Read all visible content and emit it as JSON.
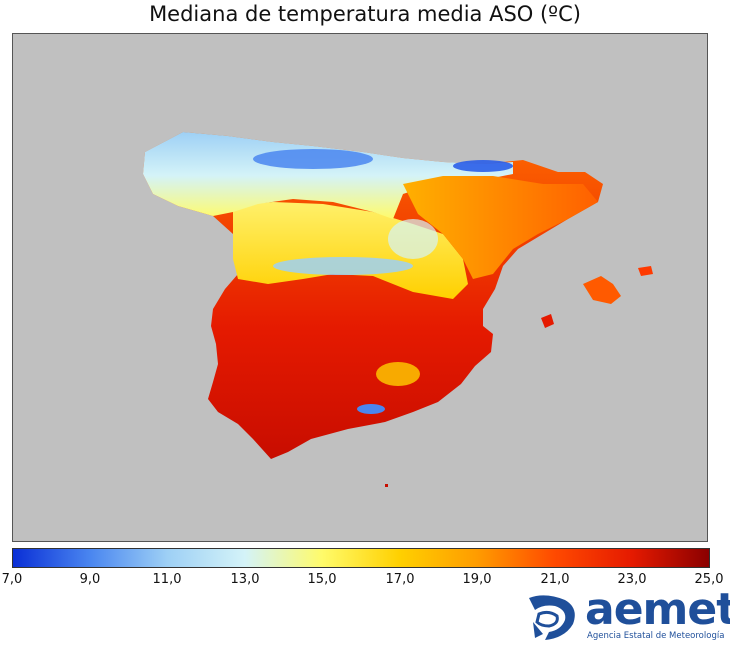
{
  "title": "Mediana de temperatura media ASO (ºC)",
  "colorbar": {
    "min": 7.0,
    "max": 25.0,
    "tick_labels": [
      "7,0",
      "9,0",
      "11,0",
      "13,0",
      "15,0",
      "17,0",
      "19,0",
      "21,0",
      "23,0",
      "25,0"
    ],
    "colors": [
      "#0a2fd6",
      "#4a86f0",
      "#9ed0f5",
      "#d4f3f8",
      "#fffb6a",
      "#ffd000",
      "#ff9c00",
      "#ff4a00",
      "#e51a00",
      "#8b0000"
    ]
  },
  "map": {
    "background_color": "#c0c0c0",
    "regions": [
      {
        "name": "galicia-cantabria",
        "value": 13.5
      },
      {
        "name": "castilla-leon",
        "value": 15.5
      },
      {
        "name": "ebro-valley",
        "value": 19.0
      },
      {
        "name": "meseta-sur",
        "value": 19.5
      },
      {
        "name": "valencia-murcia",
        "value": 21.0
      },
      {
        "name": "andalucia",
        "value": 22.5
      },
      {
        "name": "baleares",
        "value": 21.0
      }
    ]
  },
  "logo": {
    "word": "aemet",
    "subtitle": "Agencia Estatal de Meteorología"
  }
}
